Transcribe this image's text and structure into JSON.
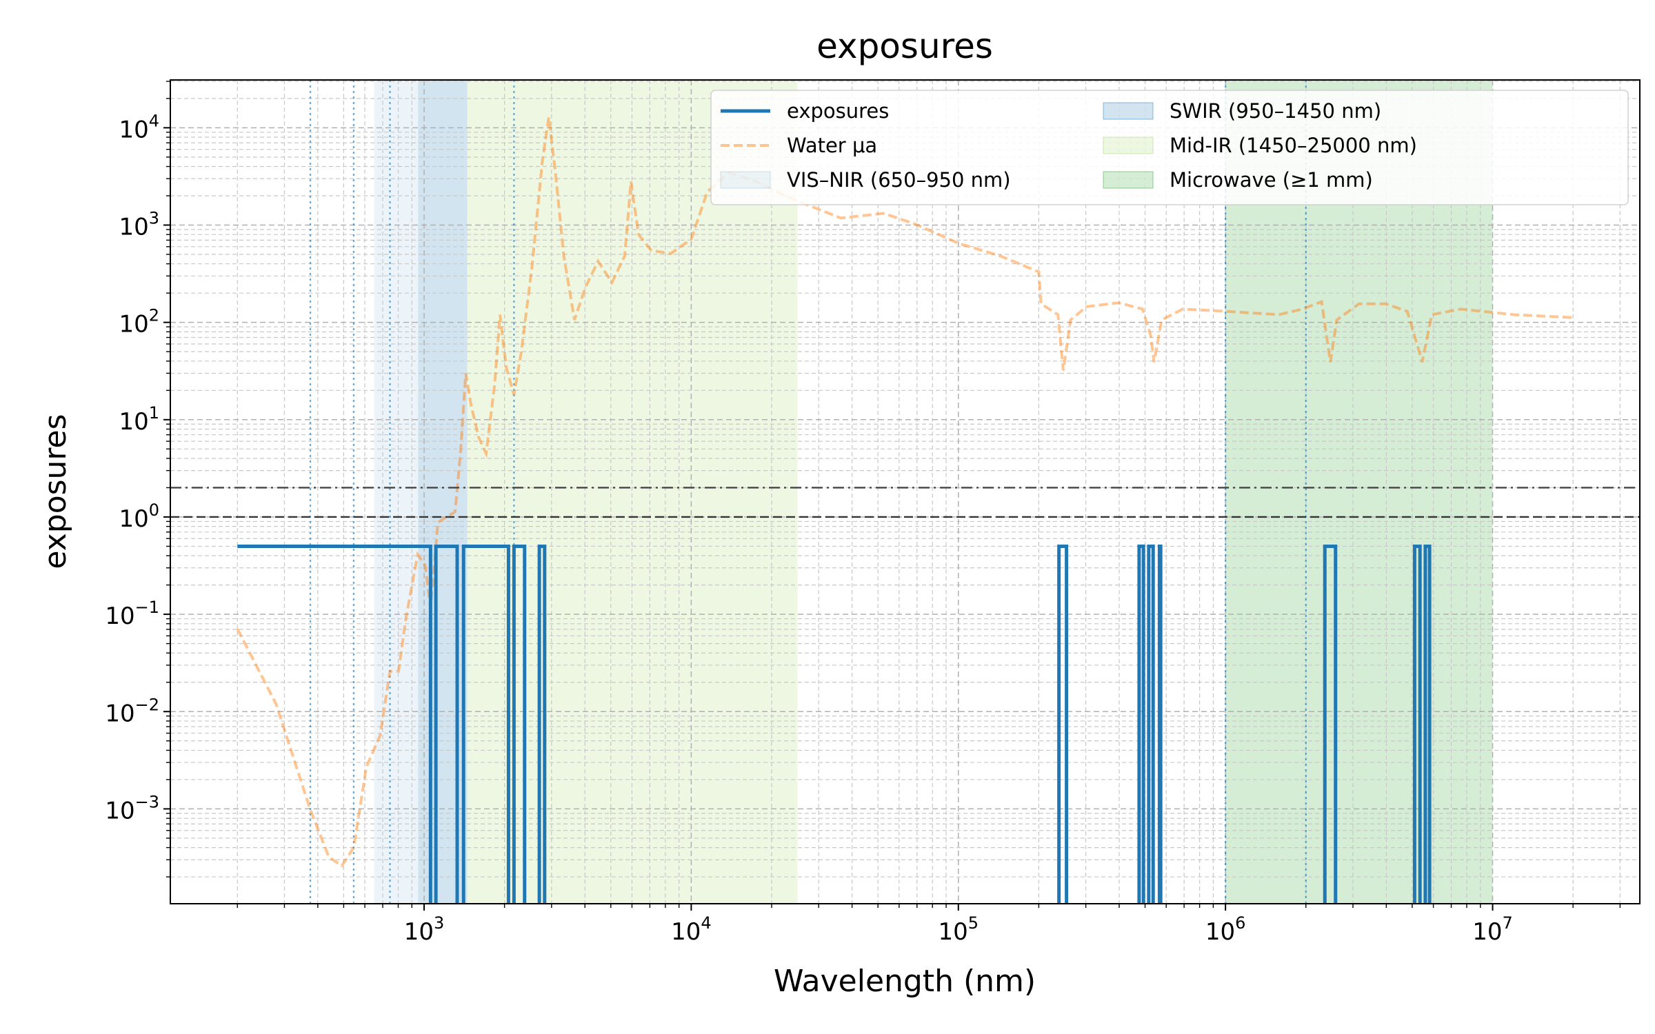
{
  "chart_data": {
    "type": "line",
    "title": "exposures",
    "xlabel": "Wavelength (nm)",
    "ylabel": "exposures",
    "xscale": "log",
    "yscale": "log",
    "xlim": [
      112.2,
      35570000
    ],
    "ylim": [
      0.000106,
      31000
    ],
    "xticks": [
      {
        "value": 1000,
        "label": "10",
        "exponent": "3"
      },
      {
        "value": 10000,
        "label": "10",
        "exponent": "4"
      },
      {
        "value": 100000,
        "label": "10",
        "exponent": "5"
      },
      {
        "value": 1000000,
        "label": "10",
        "exponent": "6"
      },
      {
        "value": 10000000,
        "label": "10",
        "exponent": "7"
      }
    ],
    "yticks": [
      {
        "value": 0.001,
        "label": "10",
        "exponent": "−3"
      },
      {
        "value": 0.01,
        "label": "10",
        "exponent": "−2"
      },
      {
        "value": 0.1,
        "label": "10",
        "exponent": "−1"
      },
      {
        "value": 1,
        "label": "10",
        "exponent": "0"
      },
      {
        "value": 10,
        "label": "10",
        "exponent": "1"
      },
      {
        "value": 100,
        "label": "10",
        "exponent": "2"
      },
      {
        "value": 1000,
        "label": "10",
        "exponent": "3"
      },
      {
        "value": 10000,
        "label": "10",
        "exponent": "4"
      }
    ],
    "xminorticks": [
      200,
      300,
      400,
      500,
      600,
      700,
      800,
      900,
      2000,
      3000,
      4000,
      5000,
      6000,
      7000,
      8000,
      9000,
      20000,
      30000,
      40000,
      50000,
      60000,
      70000,
      80000,
      90000,
      200000,
      300000,
      400000,
      500000,
      600000,
      700000,
      800000,
      900000,
      2000000,
      3000000,
      4000000,
      5000000,
      6000000,
      7000000,
      8000000,
      9000000,
      20000000,
      30000000
    ],
    "yminorticks": [
      0.0002,
      0.0003,
      0.0004,
      0.0005,
      0.0006,
      0.0007,
      0.0008,
      0.0009,
      0.002,
      0.003,
      0.004,
      0.005,
      0.006,
      0.007,
      0.008,
      0.009,
      0.02,
      0.03,
      0.04,
      0.05,
      0.06,
      0.07,
      0.08,
      0.09,
      0.2,
      0.3,
      0.4,
      0.5,
      0.6,
      0.7,
      0.8,
      0.9,
      2,
      3,
      4,
      5,
      6,
      7,
      8,
      9,
      20,
      30,
      40,
      50,
      60,
      70,
      80,
      90,
      200,
      300,
      400,
      500,
      600,
      700,
      800,
      900,
      2000,
      3000,
      4000,
      5000,
      6000,
      7000,
      8000,
      9000,
      20000,
      30000
    ],
    "grid": true,
    "legend": "upper right",
    "legend_columns": 2,
    "series": [
      {
        "name": "exposures",
        "color": "#1f77b4",
        "alpha": 1,
        "linestyle": "solid",
        "x": [
          200,
          1057,
          1057,
          1107,
          1107,
          1330,
          1330,
          1405,
          1405,
          2070,
          2070,
          2170,
          2170,
          2378,
          2378,
          2700,
          2700,
          2826,
          2826,
          238000,
          238000,
          254000,
          254000,
          475000,
          475000,
          493000,
          493000,
          516000,
          516000,
          536000,
          536000,
          566000,
          566000,
          572000,
          572000,
          2355000,
          2355000,
          2582000,
          2582000,
          5105000,
          5105000,
          5346000,
          5346000,
          5598000,
          5598000,
          5808000,
          5808000
        ],
        "values": [
          0.5,
          0.5,
          0,
          0,
          0.5,
          0.5,
          0,
          0,
          0.5,
          0.5,
          0,
          0,
          0.5,
          0.5,
          0,
          0,
          0.5,
          0.5,
          0,
          0,
          0.5,
          0.5,
          0,
          0,
          0.5,
          0.5,
          0,
          0,
          0.5,
          0.5,
          0,
          0,
          0.5,
          0.5,
          0,
          0,
          0.5,
          0.5,
          0,
          0,
          0.5,
          0.5,
          0,
          0,
          0.5,
          0.5,
          0
        ]
      },
      {
        "name": "Water μa",
        "color": "#ff7f0e",
        "alpha": 0.45,
        "linestyle": "dashed",
        "x": [
          200,
          279,
          375,
          440,
          492,
          545,
          608,
          685,
          745,
          802,
          855,
          946,
          1009,
          1057,
          1127,
          1213,
          1306,
          1368,
          1432,
          1500,
          1600,
          1707,
          1837,
          1924,
          2032,
          2170,
          2312,
          2535,
          2775,
          2930,
          3098,
          3335,
          3656,
          4008,
          4478,
          5050,
          5633,
          5950,
          6350,
          7090,
          8380,
          10000,
          11480,
          13800,
          17400,
          22900,
          36300,
          52500,
          69200,
          100000,
          144000,
          200000,
          204000,
          236000,
          247000,
          263000,
          302000,
          398000,
          489000,
          525000,
          540000,
          577000,
          692000,
          1000000,
          1585000,
          1940000,
          2290000,
          2470000,
          2610000,
          3160000,
          3980000,
          4790000,
          5250000,
          5450000,
          5920000,
          7590000,
          12000000,
          20000000
        ],
        "values": [
          0.071,
          0.012,
          0.00098,
          0.00032,
          0.00026,
          0.0004,
          0.0027,
          0.0057,
          0.026,
          0.026,
          0.091,
          0.41,
          0.32,
          0.117,
          0.88,
          1.0,
          1.13,
          4.5,
          30,
          14,
          6.6,
          4.5,
          23,
          120,
          34,
          18,
          50,
          375,
          4700,
          12800,
          3600,
          480,
          106,
          226,
          425,
          257,
          480,
          2800,
          800,
          548,
          510,
          715,
          2190,
          3460,
          2820,
          1950,
          1180,
          1320,
          1020,
          650,
          480,
          330,
          155,
          120,
          32,
          106,
          145,
          159,
          137,
          73,
          39,
          106,
          137,
          130,
          120,
          137,
          163,
          39,
          106,
          155,
          155,
          130,
          56,
          39,
          120,
          137,
          120,
          112
        ]
      }
    ],
    "spans": [
      {
        "name": "VIS–NIR (650–950 nm)",
        "range": [
          650,
          950
        ],
        "color": "#1f77b4",
        "alpha": 0.08
      },
      {
        "name": "SWIR (950–1450 nm)",
        "range": [
          950,
          1450
        ],
        "color": "#1f77b4",
        "alpha": 0.2
      },
      {
        "name": "Mid-IR (1450–25000 nm)",
        "range": [
          1450,
          25000
        ],
        "color": "#8cc63f",
        "alpha": 0.15
      },
      {
        "name": "Microwave (≥1 mm)",
        "range": [
          1000000,
          10000000
        ],
        "color": "#2ca02c",
        "alpha": 0.2
      }
    ],
    "hlines": [
      {
        "value": 1,
        "color": "#333333",
        "linestyle": "dashed"
      },
      {
        "value": 2,
        "color": "#444444",
        "linestyle": "dashdot"
      }
    ],
    "vlines": [
      {
        "value": 375,
        "color": "#1f77b4",
        "linestyle": "dotted"
      },
      {
        "value": 545,
        "color": "#1f77b4",
        "linestyle": "dotted"
      },
      {
        "value": 745,
        "color": "#1f77b4",
        "linestyle": "dotted"
      },
      {
        "value": 2170,
        "color": "#1f77b4",
        "linestyle": "dotted"
      },
      {
        "value": 1000000,
        "color": "#1f77b4",
        "linestyle": "dotted"
      },
      {
        "value": 2000000,
        "color": "#1f77b4",
        "linestyle": "dotted"
      }
    ]
  }
}
